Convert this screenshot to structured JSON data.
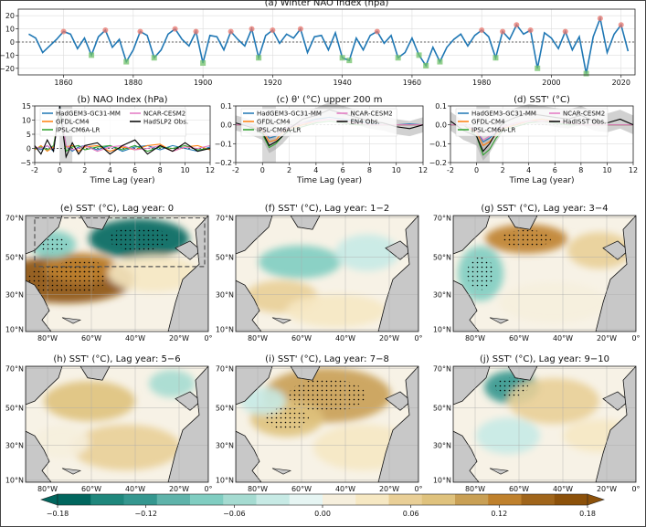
{
  "chart_data": [
    {
      "type": "line",
      "panel": "a",
      "title": "(a) Winter NAO Index (hpa)",
      "xlim": [
        1847,
        2024
      ],
      "ylim": [
        -25,
        25
      ],
      "xticks": [
        "1860",
        "1880",
        "1900",
        "1920",
        "1940",
        "1960",
        "1980",
        "2000",
        "2020"
      ],
      "yticks": [
        "20",
        "10",
        "0",
        "-10",
        "-20"
      ],
      "series": [
        {
          "color": "#1f77b4",
          "x": [
            1850,
            1852,
            1854,
            1856,
            1858,
            1860,
            1862,
            1864,
            1866,
            1868,
            1870,
            1872,
            1874,
            1876,
            1878,
            1880,
            1882,
            1884,
            1886,
            1888,
            1890,
            1892,
            1894,
            1896,
            1898,
            1900,
            1902,
            1904,
            1906,
            1908,
            1910,
            1912,
            1914,
            1916,
            1918,
            1920,
            1922,
            1924,
            1926,
            1928,
            1930,
            1932,
            1934,
            1936,
            1938,
            1940,
            1942,
            1944,
            1946,
            1948,
            1950,
            1952,
            1954,
            1956,
            1958,
            1960,
            1962,
            1964,
            1966,
            1968,
            1970,
            1972,
            1974,
            1976,
            1978,
            1980,
            1982,
            1984,
            1986,
            1988,
            1990,
            1992,
            1994,
            1996,
            1998,
            2000,
            2002,
            2004,
            2006,
            2008,
            2010,
            2012,
            2014,
            2016,
            2018,
            2020,
            2022
          ],
          "values": [
            6,
            3,
            -8,
            -3,
            2,
            8,
            6,
            -5,
            3,
            -10,
            4,
            9,
            -4,
            2,
            -15,
            -6,
            8,
            5,
            -12,
            -6,
            6,
            10,
            2,
            -3,
            8,
            -16,
            5,
            4,
            -6,
            8,
            2,
            -3,
            10,
            -12,
            5,
            9,
            -1,
            6,
            3,
            10,
            -8,
            4,
            5,
            -6,
            7,
            -12,
            -14,
            3,
            -6,
            5,
            8,
            -1,
            5,
            -12,
            -8,
            3,
            -10,
            -18,
            -4,
            -15,
            -4,
            2,
            6,
            -3,
            5,
            9,
            4,
            -12,
            8,
            2,
            13,
            6,
            9,
            -20,
            7,
            3,
            -5,
            8,
            -6,
            4,
            -24,
            4,
            18,
            -8,
            6,
            13,
            -7
          ]
        }
      ]
    },
    {
      "type": "line",
      "panel": "b",
      "title": "(b) NAO Index (hPa)",
      "xlabel": "Time Lag (year)",
      "xlim": [
        -2,
        12
      ],
      "ylim": [
        -5,
        15
      ],
      "xticks": [
        "-2",
        "0",
        "2",
        "4",
        "6",
        "8",
        "10",
        "12"
      ],
      "yticks": [
        "15",
        "10",
        "5",
        "0",
        "-5"
      ],
      "legend": [
        "HadGEM3-GC31-MM",
        "GFDL-CM4",
        "IPSL-CM6A-LR",
        "NCAR-CESM2",
        "HadSLP2 Obs."
      ],
      "series": [
        {
          "name": "HadGEM3-GC31-MM",
          "color": "#1f77b4",
          "x": [
            -2,
            -1.5,
            -1,
            -0.5,
            0,
            0.5,
            1,
            1.5,
            2,
            3,
            4,
            5,
            6,
            7,
            8,
            9,
            10,
            11,
            12
          ],
          "values": [
            0.5,
            -0.5,
            1,
            -1,
            15,
            1,
            -1,
            0.5,
            1,
            -0.5,
            1,
            -1,
            0.5,
            1,
            -0.5,
            1,
            0,
            -1,
            0.5
          ]
        },
        {
          "name": "GFDL-CM4",
          "color": "#ff7f0e",
          "x": [
            -2,
            -1.5,
            -1,
            -0.5,
            0,
            0.5,
            1,
            1.5,
            2,
            3,
            4,
            5,
            6,
            7,
            8,
            9,
            10,
            11,
            12
          ],
          "values": [
            -0.5,
            1,
            -1,
            0.5,
            14,
            0.5,
            1,
            -1,
            0.5,
            1,
            -1,
            0.5,
            -0.5,
            1,
            1.5,
            -1,
            0.5,
            1,
            -0.5
          ]
        },
        {
          "name": "IPSL-CM6A-LR",
          "color": "#2ca02c",
          "x": [
            -2,
            -1.5,
            -1,
            -0.5,
            0,
            0.5,
            1,
            1.5,
            2,
            3,
            4,
            5,
            6,
            7,
            8,
            9,
            10,
            11,
            12
          ],
          "values": [
            0,
            0.5,
            -0.5,
            1,
            13,
            -1,
            0.5,
            1,
            -0.5,
            0.5,
            1,
            -0.5,
            1,
            -1,
            0.5,
            0,
            1,
            -0.5,
            0
          ]
        },
        {
          "name": "NCAR-CESM2",
          "color": "#e377c2",
          "x": [
            -2,
            -1.5,
            -1,
            -0.5,
            0,
            0.5,
            1,
            1.5,
            2,
            3,
            4,
            5,
            6,
            7,
            8,
            9,
            10,
            11,
            12
          ],
          "values": [
            0.5,
            0,
            1,
            -0.5,
            14,
            1,
            -0.5,
            0,
            1,
            -1,
            0.5,
            1,
            -0.5,
            0,
            1,
            -1,
            0.5,
            0,
            1
          ]
        },
        {
          "name": "HadSLP2 Obs.",
          "color": "#000000",
          "x": [
            -2,
            -1.5,
            -1,
            -0.5,
            0,
            0.5,
            1,
            1.5,
            2,
            3,
            4,
            5,
            6,
            7,
            8,
            9,
            10,
            11,
            12
          ],
          "values": [
            1,
            -2,
            3,
            -1,
            15,
            -3,
            2,
            -2,
            1,
            2,
            -2,
            1,
            3,
            -2,
            1,
            -1,
            2,
            -1,
            0
          ]
        }
      ]
    },
    {
      "type": "line",
      "panel": "c",
      "title": "(c) θ' (°C) upper 200 m",
      "xlabel": "Time Lag (year)",
      "xlim": [
        -2,
        12
      ],
      "ylim": [
        -0.2,
        0.1
      ],
      "xticks": [
        "-2",
        "0",
        "2",
        "4",
        "6",
        "8",
        "10",
        "12"
      ],
      "yticks": [
        "0.1",
        "0.0",
        "-0.1",
        "-0.2"
      ],
      "legend": [
        "HadGEM3-GC31-MM",
        "GFDL-CM4",
        "IPSL-CM6A-LR",
        "NCAR-CESM2",
        "EN4 Obs."
      ],
      "series": [
        {
          "name": "HadGEM3-GC31-MM",
          "color": "#1f77b4",
          "x": [
            -2,
            -1,
            0,
            0.5,
            1,
            1.5,
            2,
            3,
            4,
            5,
            6,
            7,
            8,
            9,
            10,
            11,
            12
          ],
          "values": [
            0,
            0.005,
            -0.02,
            -0.07,
            -0.06,
            -0.03,
            -0.01,
            0.01,
            0.03,
            0.04,
            0.03,
            0.02,
            0.01,
            0,
            0,
            0.005,
            0
          ]
        },
        {
          "name": "GFDL-CM4",
          "color": "#ff7f0e",
          "x": [
            -2,
            -1,
            0,
            0.5,
            1,
            1.5,
            2,
            3,
            4,
            5,
            6,
            7,
            8,
            9,
            10,
            11,
            12
          ],
          "values": [
            0,
            0,
            -0.03,
            -0.09,
            -0.08,
            -0.04,
            -0.02,
            0,
            0.02,
            0.03,
            0.02,
            0.01,
            0,
            0,
            0,
            0,
            0
          ]
        },
        {
          "name": "IPSL-CM6A-LR",
          "color": "#2ca02c",
          "x": [
            -2,
            -1,
            0,
            0.5,
            1,
            1.5,
            2,
            3,
            4,
            5,
            6,
            7,
            8,
            9,
            10,
            11,
            12
          ],
          "values": [
            0,
            0,
            -0.05,
            -0.12,
            -0.1,
            -0.06,
            -0.03,
            -0.01,
            0.01,
            0.02,
            0.01,
            0,
            0,
            0,
            0,
            0,
            0
          ]
        },
        {
          "name": "NCAR-CESM2",
          "color": "#e377c2",
          "x": [
            -2,
            -1,
            0,
            0.5,
            1,
            1.5,
            2,
            3,
            4,
            5,
            6,
            7,
            8,
            9,
            10,
            11,
            12
          ],
          "values": [
            0,
            0,
            -0.02,
            -0.06,
            -0.05,
            -0.03,
            -0.01,
            0.01,
            0.02,
            0.03,
            0.02,
            0.01,
            0,
            0,
            0,
            0,
            0
          ]
        },
        {
          "name": "EN4 Obs.",
          "color": "#000000",
          "x": [
            -2,
            -1,
            0,
            0.5,
            1,
            1.5,
            2,
            3,
            4,
            5,
            6,
            7,
            8,
            9,
            10,
            11,
            12
          ],
          "values": [
            0.01,
            -0.01,
            -0.04,
            -0.11,
            -0.09,
            -0.06,
            -0.02,
            0.03,
            0.05,
            0.08,
            0.06,
            0.04,
            0.02,
            0.01,
            -0.01,
            -0.02,
            0
          ]
        }
      ]
    },
    {
      "type": "line",
      "panel": "d",
      "title": "(d) SST' (°C)",
      "xlabel": "Time Lag (year)",
      "xlim": [
        -2,
        12
      ],
      "ylim": [
        -0.2,
        0.1
      ],
      "xticks": [
        "-2",
        "0",
        "2",
        "4",
        "6",
        "8",
        "10",
        "12"
      ],
      "yticks": [
        "0.1",
        "0.0",
        "-0.1",
        "-0.2"
      ],
      "legend": [
        "HadGEM3-GC31-MM",
        "GFDL-CM4",
        "IPSL-CM6A-LR",
        "NCAR-CESM2",
        "HadISST Obs."
      ],
      "series": [
        {
          "name": "HadGEM3-GC31-MM",
          "color": "#1f77b4",
          "x": [
            -2,
            -1,
            0,
            0.5,
            1,
            1.5,
            2,
            3,
            4,
            5,
            6,
            7,
            8,
            9,
            10,
            11,
            12
          ],
          "values": [
            0,
            0,
            -0.03,
            -0.09,
            -0.07,
            -0.04,
            -0.02,
            0,
            0.02,
            0.03,
            0.02,
            0.01,
            0,
            0,
            0,
            0,
            0
          ]
        },
        {
          "name": "GFDL-CM4",
          "color": "#ff7f0e",
          "x": [
            -2,
            -1,
            0,
            0.5,
            1,
            1.5,
            2,
            3,
            4,
            5,
            6,
            7,
            8,
            9,
            10,
            11,
            12
          ],
          "values": [
            0,
            0,
            -0.04,
            -0.11,
            -0.09,
            -0.05,
            -0.02,
            0,
            0.02,
            0.03,
            0.02,
            0.01,
            0,
            0,
            0,
            0,
            0
          ]
        },
        {
          "name": "IPSL-CM6A-LR",
          "color": "#2ca02c",
          "x": [
            -2,
            -1,
            0,
            0.5,
            1,
            1.5,
            2,
            3,
            4,
            5,
            6,
            7,
            8,
            9,
            10,
            11,
            12
          ],
          "values": [
            0,
            0,
            -0.06,
            -0.16,
            -0.13,
            -0.07,
            -0.03,
            -0.01,
            0.01,
            0.02,
            0.01,
            0,
            0,
            0,
            0,
            0,
            0
          ]
        },
        {
          "name": "NCAR-CESM2",
          "color": "#e377c2",
          "x": [
            -2,
            -1,
            0,
            0.5,
            1,
            1.5,
            2,
            3,
            4,
            5,
            6,
            7,
            8,
            9,
            10,
            11,
            12
          ],
          "values": [
            0,
            0,
            -0.03,
            -0.08,
            -0.06,
            -0.03,
            -0.01,
            0.01,
            0.02,
            0.02,
            0.02,
            0.01,
            0,
            0,
            0,
            0,
            0
          ]
        },
        {
          "name": "HadISST Obs.",
          "color": "#000000",
          "x": [
            -2,
            -1,
            0,
            0.5,
            1,
            1.5,
            2,
            3,
            4,
            5,
            6,
            7,
            8,
            9,
            10,
            11,
            12
          ],
          "values": [
            0.02,
            -0.03,
            -0.06,
            -0.14,
            -0.1,
            -0.04,
            0.01,
            0.04,
            0.06,
            0.05,
            0.04,
            0.03,
            0.05,
            0.02,
            0.01,
            0.03,
            0
          ]
        }
      ]
    },
    {
      "type": "heatmap",
      "maps": [
        {
          "title": "(e) SST' (°C), Lag year: 0"
        },
        {
          "title": "(f) SST' (°C), Lag year: 1−2"
        },
        {
          "title": "(g) SST' (°C), Lag year: 3−4"
        },
        {
          "title": "(h) SST' (°C), Lag year: 5−6"
        },
        {
          "title": "(i) SST' (°C), Lag year: 7−8"
        },
        {
          "title": "(j) SST' (°C), Lag year: 9−10"
        }
      ],
      "xticks": [
        "80°W",
        "60°W",
        "40°W",
        "20°W",
        "0°"
      ],
      "yticks": [
        "70°N",
        "50°N",
        "30°N",
        "10°N"
      ],
      "colorbar": {
        "range": [
          -0.18,
          0.18
        ],
        "ticks": [
          "−0.18",
          "−0.12",
          "−0.06",
          "0.00",
          "0.06",
          "0.12",
          "0.18"
        ],
        "colors": [
          "#01665e",
          "#1f877c",
          "#35978f",
          "#5fb3aa",
          "#80cdc1",
          "#a5dbd1",
          "#c7eae5",
          "#e6f5f3",
          "#f6efdd",
          "#f6e8c3",
          "#e9cf97",
          "#dfc27d",
          "#c9a055",
          "#bf812d",
          "#a0651b",
          "#8c510a"
        ]
      }
    }
  ]
}
